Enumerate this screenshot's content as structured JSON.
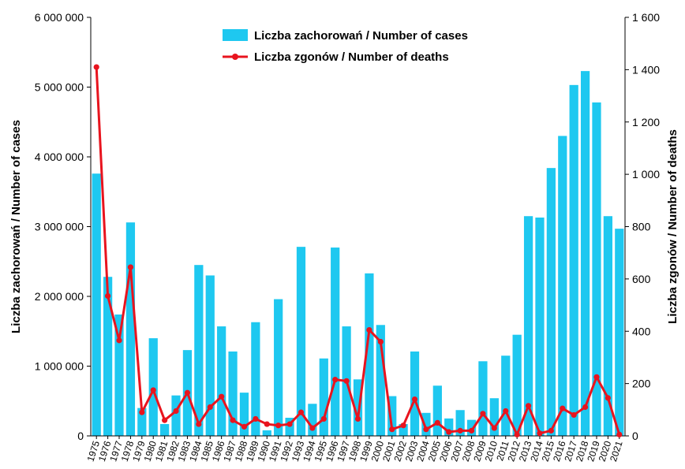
{
  "chart_data": {
    "type": "bar+line",
    "categories": [
      "1975",
      "1976",
      "1977",
      "1978",
      "1979",
      "1980",
      "1981",
      "1982",
      "1983",
      "1984",
      "1985",
      "1986",
      "1987",
      "1988",
      "1989",
      "1990",
      "1991",
      "1992",
      "1993",
      "1994",
      "1995",
      "1996",
      "1997",
      "1998",
      "1999",
      "2000",
      "2001",
      "2002",
      "2003",
      "2004",
      "2005",
      "2006",
      "2007",
      "2008",
      "2009",
      "2010",
      "2011",
      "2012",
      "2013",
      "2014",
      "2015",
      "2016",
      "2017",
      "2018",
      "2019",
      "2020",
      "2021"
    ],
    "series": [
      {
        "name": "Liczba zachorowań / Number of cases",
        "kind": "bar",
        "axis": "left",
        "color": "#1EC8F0",
        "values": [
          3760000,
          2280000,
          1740000,
          3060000,
          400000,
          1400000,
          170000,
          580000,
          1230000,
          2450000,
          2300000,
          1570000,
          1210000,
          620000,
          1630000,
          80000,
          1960000,
          260000,
          2710000,
          460000,
          1110000,
          2700000,
          1570000,
          810000,
          2330000,
          1590000,
          570000,
          170000,
          1210000,
          330000,
          720000,
          250000,
          370000,
          230000,
          1070000,
          540000,
          1150000,
          1450000,
          3150000,
          3130000,
          3840000,
          4300000,
          5030000,
          5230000,
          4780000,
          3150000,
          2970000
        ]
      },
      {
        "name": "Liczba zgonów / Number of deaths",
        "kind": "line",
        "axis": "right",
        "color": "#E8141E",
        "values": [
          1410,
          535,
          365,
          645,
          90,
          175,
          60,
          95,
          165,
          45,
          110,
          150,
          60,
          35,
          65,
          45,
          40,
          45,
          90,
          30,
          65,
          215,
          210,
          65,
          405,
          360,
          25,
          40,
          140,
          25,
          50,
          15,
          20,
          20,
          85,
          30,
          95,
          5,
          115,
          10,
          20,
          105,
          80,
          110,
          225,
          145,
          5
        ]
      }
    ],
    "y_left": {
      "label": "Liczba zachorowań  /  Number of cases",
      "ylim": [
        0,
        6000000
      ],
      "ticks": [
        "0",
        "1 000 000",
        "2 000 000",
        "3 000 000",
        "4 000 000",
        "5 000 000",
        "6 000 000"
      ]
    },
    "y_right": {
      "label": "Liczba zgonów  /  Number of deaths",
      "ylim": [
        0,
        1600
      ],
      "ticks": [
        "0",
        "200",
        "400",
        "600",
        "800",
        "1 000",
        "1 200",
        "1 400",
        "1 600"
      ]
    },
    "grid": false,
    "legend_position": "top-center"
  }
}
